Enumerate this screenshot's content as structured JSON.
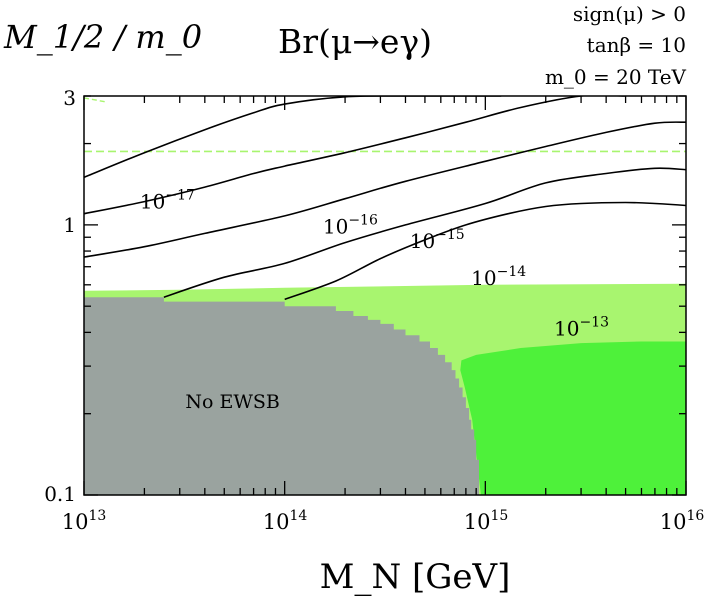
{
  "chart_data": {
    "type": "line",
    "title": "Br(μ→eγ)",
    "xlabel": "M_N [GeV]",
    "ylabel": "M_1/2 / m_0",
    "xscale": "log",
    "yscale": "log",
    "xlim": [
      10000000000000.0,
      1e+16
    ],
    "ylim": [
      0.1,
      3
    ],
    "x_ticks": [
      {
        "value": 10000000000000.0,
        "base": "10",
        "exp": "13"
      },
      {
        "value": 100000000000000.0,
        "base": "10",
        "exp": "14"
      },
      {
        "value": 1000000000000000.0,
        "base": "10",
        "exp": "15"
      },
      {
        "value": 1e+16,
        "base": "10",
        "exp": "16"
      }
    ],
    "y_ticks": [
      {
        "value": 0.1,
        "label": "0.1"
      },
      {
        "value": 1,
        "label": "1"
      },
      {
        "value": 3,
        "label": "3"
      }
    ],
    "legend_text": {
      "line1": "sign(μ) > 0",
      "line2": "tanβ = 10",
      "line3": "m_0 = 20 TeV"
    },
    "series": [
      {
        "name": "1e-17",
        "label_base": "10",
        "label_exp": "−17",
        "label_at": [
          19000000000000.0,
          1.15
        ],
        "x": [
          10000000000000.0,
          20000000000000.0,
          40000000000000.0,
          70000000000000.0,
          100000000000000.0,
          200000000000000.0,
          400000000000000.0,
          800000000000000.0,
          1200000000000000.0
        ],
        "y": [
          1.5,
          1.85,
          2.25,
          2.6,
          2.8,
          2.98,
          3.0,
          3.0,
          3.0
        ]
      },
      {
        "name": "1e-16",
        "label_base": "10",
        "label_exp": "−16",
        "label_at": [
          155000000000000.0,
          0.93
        ],
        "x": [
          10000000000000.0,
          20000000000000.0,
          40000000000000.0,
          70000000000000.0,
          100000000000000.0,
          200000000000000.0,
          400000000000000.0,
          800000000000000.0,
          1500000000000000.0,
          3000000000000000.0,
          5000000000000000.0
        ],
        "y": [
          1.1,
          1.22,
          1.38,
          1.55,
          1.65,
          1.85,
          2.1,
          2.4,
          2.72,
          3.0,
          3.0
        ]
      },
      {
        "name": "1e-15",
        "label_base": "10",
        "label_exp": "−15",
        "label_at": [
          420000000000000.0,
          0.82
        ],
        "x": [
          10000000000000.0,
          20000000000000.0,
          40000000000000.0,
          100000000000000.0,
          200000000000000.0,
          400000000000000.0,
          1000000000000000.0,
          2000000000000000.0,
          4000000000000000.0,
          7000000000000000.0,
          1e+16
        ],
        "y": [
          0.76,
          0.83,
          0.93,
          1.08,
          1.25,
          1.45,
          1.72,
          1.95,
          2.2,
          2.38,
          2.4
        ]
      },
      {
        "name": "1e-14",
        "label_base": "10",
        "label_exp": "−14",
        "label_at": [
          850000000000000.0,
          0.6
        ],
        "x": [
          25000000000000.0,
          50000000000000.0,
          100000000000000.0,
          200000000000000.0,
          400000000000000.0,
          1000000000000000.0,
          2000000000000000.0,
          4000000000000000.0,
          7000000000000000.0,
          1e+16
        ],
        "y": [
          0.54,
          0.64,
          0.72,
          0.86,
          1.0,
          1.2,
          1.43,
          1.55,
          1.62,
          1.6
        ]
      },
      {
        "name": "1e-13",
        "label_base": "10",
        "label_exp": "−13",
        "label_at": [
          2200000000000000.0,
          0.39
        ],
        "x": [
          100000000000000.0,
          180000000000000.0,
          300000000000000.0,
          500000000000000.0,
          800000000000000.0,
          1300000000000000.0,
          2000000000000000.0,
          3000000000000000.0,
          5000000000000000.0,
          7000000000000000.0,
          1e+16
        ],
        "y": [
          0.53,
          0.62,
          0.75,
          0.88,
          1.0,
          1.1,
          1.17,
          1.2,
          1.21,
          1.2,
          1.18
        ]
      }
    ],
    "regions": [
      {
        "name": "light-green",
        "color": "#a8f56f"
      },
      {
        "name": "bright-green",
        "color": "#4ef13a"
      },
      {
        "name": "no-ewsb",
        "label": "No EWSB",
        "color": "#9aa39f",
        "label_at": [
          32000000000000.0,
          0.21
        ]
      }
    ],
    "hline": {
      "y": 1.87,
      "color": "#a8f56f",
      "style": "dashed"
    }
  }
}
